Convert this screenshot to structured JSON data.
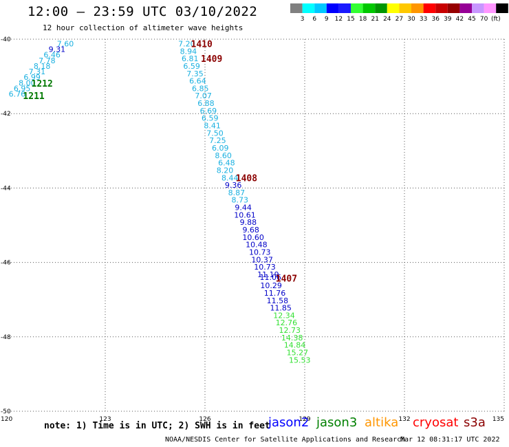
{
  "header": {
    "title": "12:00 – 23:59 UTC 03/10/2022",
    "subtitle": "12 hour collection of altimeter wave heights"
  },
  "legend": {
    "bins": [
      {
        "label": "",
        "color": "#808080"
      },
      {
        "label": "3",
        "color": "#00ffff"
      },
      {
        "label": "6",
        "color": "#00c8ff"
      },
      {
        "label": "9",
        "color": "#0000ff"
      },
      {
        "label": "12",
        "color": "#1a1aff"
      },
      {
        "label": "15",
        "color": "#33ff33"
      },
      {
        "label": "18",
        "color": "#00c800"
      },
      {
        "label": "21",
        "color": "#009600"
      },
      {
        "label": "24",
        "color": "#ffff00"
      },
      {
        "label": "27",
        "color": "#ffc800"
      },
      {
        "label": "30",
        "color": "#ff9600"
      },
      {
        "label": "33",
        "color": "#ff0000"
      },
      {
        "label": "36",
        "color": "#c80000"
      },
      {
        "label": "39",
        "color": "#960000"
      },
      {
        "label": "42",
        "color": "#960096"
      },
      {
        "label": "45",
        "color": "#c896ff"
      },
      {
        "label": "70",
        "color": "#ff96ff"
      },
      {
        "label": "",
        "color": "#000000"
      }
    ],
    "unit": "(ft)"
  },
  "chart_data": {
    "type": "scatter",
    "title": "12:00 – 23:59 UTC 03/10/2022",
    "subtitle": "12 hour collection of altimeter wave heights",
    "xlim": [
      120,
      135
    ],
    "ylim": [
      -50,
      -40
    ],
    "xticks": [
      120,
      123,
      126,
      129,
      132,
      135
    ],
    "yticks": [
      -40,
      -42,
      -44,
      -46,
      -48,
      -50
    ],
    "grid": true,
    "colors": {
      "light": "#1ab0e0",
      "dark": "#0000c8",
      "green": "#33e033",
      "time": "#8b0000",
      "time_green": "#007800"
    },
    "points": [
      {
        "x": 121.8,
        "y": -40.12,
        "v": "7.60",
        "c": "light"
      },
      {
        "x": 121.55,
        "y": -40.27,
        "v": "9.31",
        "c": "dark"
      },
      {
        "x": 121.4,
        "y": -40.42,
        "v": "6.46",
        "c": "light"
      },
      {
        "x": 121.25,
        "y": -40.57,
        "v": "7.78",
        "c": "light"
      },
      {
        "x": 121.1,
        "y": -40.72,
        "v": "8.18",
        "c": "light"
      },
      {
        "x": 120.95,
        "y": -40.87,
        "v": "7.31",
        "c": "light"
      },
      {
        "x": 120.8,
        "y": -41.02,
        "v": "6.99",
        "c": "light"
      },
      {
        "x": 120.65,
        "y": -41.17,
        "v": "8.00",
        "c": "light"
      },
      {
        "x": 120.5,
        "y": -41.32,
        "v": "6.95",
        "c": "light"
      },
      {
        "x": 120.35,
        "y": -41.47,
        "v": "6.76",
        "c": "light"
      },
      {
        "x": 125.45,
        "y": -40.12,
        "v": "7.20",
        "c": "light"
      },
      {
        "x": 125.5,
        "y": -40.32,
        "v": "8.94",
        "c": "light"
      },
      {
        "x": 125.55,
        "y": -40.52,
        "v": "6.81",
        "c": "light"
      },
      {
        "x": 125.6,
        "y": -40.72,
        "v": "6.59",
        "c": "light"
      },
      {
        "x": 125.7,
        "y": -40.92,
        "v": "7.35",
        "c": "light"
      },
      {
        "x": 125.78,
        "y": -41.12,
        "v": "6.64",
        "c": "light"
      },
      {
        "x": 125.86,
        "y": -41.32,
        "v": "6.85",
        "c": "light"
      },
      {
        "x": 125.95,
        "y": -41.52,
        "v": "7.07",
        "c": "light"
      },
      {
        "x": 126.03,
        "y": -41.72,
        "v": "6.88",
        "c": "light"
      },
      {
        "x": 126.1,
        "y": -41.92,
        "v": "6.69",
        "c": "light"
      },
      {
        "x": 126.15,
        "y": -42.12,
        "v": "6.59",
        "c": "light"
      },
      {
        "x": 126.22,
        "y": -42.32,
        "v": "8.41",
        "c": "light"
      },
      {
        "x": 126.3,
        "y": -42.52,
        "v": "7.50",
        "c": "light"
      },
      {
        "x": 126.38,
        "y": -42.72,
        "v": "7.25",
        "c": "light"
      },
      {
        "x": 126.46,
        "y": -42.92,
        "v": "6.09",
        "c": "light"
      },
      {
        "x": 126.55,
        "y": -43.12,
        "v": "8.60",
        "c": "light"
      },
      {
        "x": 126.65,
        "y": -43.32,
        "v": "6.48",
        "c": "light"
      },
      {
        "x": 126.6,
        "y": -43.52,
        "v": "8.20",
        "c": "light"
      },
      {
        "x": 126.75,
        "y": -43.72,
        "v": "8.44",
        "c": "light"
      },
      {
        "x": 126.85,
        "y": -43.92,
        "v": "9.36",
        "c": "dark"
      },
      {
        "x": 126.95,
        "y": -44.12,
        "v": "8.87",
        "c": "light"
      },
      {
        "x": 127.05,
        "y": -44.32,
        "v": "8.73",
        "c": "light"
      },
      {
        "x": 127.15,
        "y": -44.52,
        "v": "9.44",
        "c": "dark"
      },
      {
        "x": 127.2,
        "y": -44.72,
        "v": "10.61",
        "c": "dark"
      },
      {
        "x": 127.3,
        "y": -44.92,
        "v": "9.88",
        "c": "dark"
      },
      {
        "x": 127.38,
        "y": -45.12,
        "v": "9.68",
        "c": "dark"
      },
      {
        "x": 127.45,
        "y": -45.32,
        "v": "10.60",
        "c": "dark"
      },
      {
        "x": 127.55,
        "y": -45.52,
        "v": "10.48",
        "c": "dark"
      },
      {
        "x": 127.65,
        "y": -45.72,
        "v": "10.73",
        "c": "dark"
      },
      {
        "x": 127.72,
        "y": -45.92,
        "v": "10.37",
        "c": "dark"
      },
      {
        "x": 127.8,
        "y": -46.12,
        "v": "10.73",
        "c": "dark"
      },
      {
        "x": 127.9,
        "y": -46.32,
        "v": "11.19",
        "c": "dark"
      },
      {
        "x": 127.97,
        "y": -46.4,
        "v": "11.06",
        "c": "dark"
      },
      {
        "x": 127.99,
        "y": -46.62,
        "v": "10.29",
        "c": "dark"
      },
      {
        "x": 128.1,
        "y": -46.82,
        "v": "11.76",
        "c": "dark"
      },
      {
        "x": 128.18,
        "y": -47.02,
        "v": "11.58",
        "c": "dark"
      },
      {
        "x": 128.28,
        "y": -47.22,
        "v": "11.85",
        "c": "dark"
      },
      {
        "x": 128.38,
        "y": -47.42,
        "v": "12.34",
        "c": "green"
      },
      {
        "x": 128.45,
        "y": -47.62,
        "v": "12.76",
        "c": "green"
      },
      {
        "x": 128.55,
        "y": -47.82,
        "v": "12.73",
        "c": "green"
      },
      {
        "x": 128.62,
        "y": -48.02,
        "v": "14.38",
        "c": "green"
      },
      {
        "x": 128.7,
        "y": -48.22,
        "v": "14.84",
        "c": "green"
      },
      {
        "x": 128.78,
        "y": -48.42,
        "v": "15.27",
        "c": "green"
      },
      {
        "x": 128.85,
        "y": -48.62,
        "v": "15.53",
        "c": "green"
      }
    ],
    "pass_labels": [
      {
        "x": 125.9,
        "y": -40.12,
        "text": "1410",
        "c": "time"
      },
      {
        "x": 126.2,
        "y": -40.52,
        "text": "1409",
        "c": "time"
      },
      {
        "x": 121.1,
        "y": -41.18,
        "text": "1212",
        "c": "time_green"
      },
      {
        "x": 120.85,
        "y": -41.52,
        "text": "1211",
        "c": "time_green"
      },
      {
        "x": 127.25,
        "y": -43.72,
        "text": "1408",
        "c": "time"
      },
      {
        "x": 128.45,
        "y": -46.42,
        "text": "1407",
        "c": "time"
      }
    ]
  },
  "footer": {
    "note": "note:  1) Time is in UTC; 2) SWH is in feet",
    "satellites": [
      {
        "name": "jason2",
        "color": "#0000ff"
      },
      {
        "name": "jason3",
        "color": "#008000"
      },
      {
        "name": "altika",
        "color": "#ff9600"
      },
      {
        "name": "cryosat",
        "color": "#ff0000"
      },
      {
        "name": "s3a",
        "color": "#8b0000"
      }
    ],
    "credit": "NOAA/NESDIS Center for Satellite Applications and Research",
    "timestamp": "Mar 12 08:31:17 UTC 2022"
  }
}
